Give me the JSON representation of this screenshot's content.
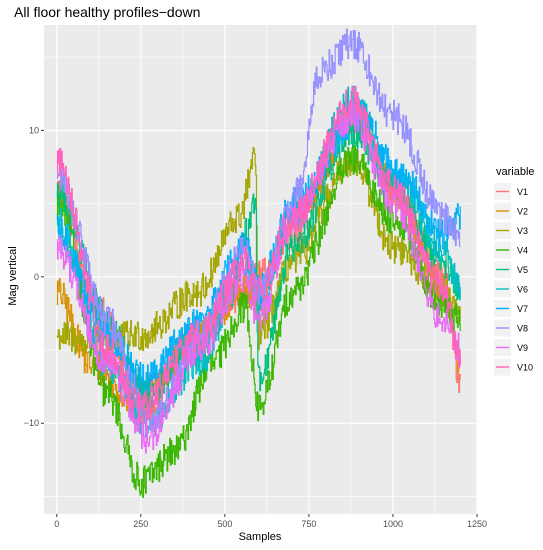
{
  "chart_data": {
    "type": "line",
    "title": "All floor healthy profiles−down",
    "xlabel": "Samples",
    "ylabel": "Mag vertical",
    "xlim": [
      -38,
      1250
    ],
    "ylim": [
      -16.2,
      17.2
    ],
    "x_ticks": [
      0,
      250,
      500,
      750,
      1000,
      1250
    ],
    "y_ticks": [
      -10,
      0,
      10
    ],
    "grid": true,
    "legend_title": "variable",
    "legend_position": "right",
    "n_samples": 1200,
    "series": [
      {
        "name": "V1",
        "color": "#F8766D",
        "keypoints": [
          [
            0,
            6
          ],
          [
            120,
            -2
          ],
          [
            250,
            -8
          ],
          [
            420,
            -4
          ],
          [
            560,
            -1
          ],
          [
            600,
            0
          ],
          [
            700,
            3
          ],
          [
            880,
            11
          ],
          [
            1000,
            6
          ],
          [
            1150,
            0
          ],
          [
            1200,
            -7
          ]
        ]
      },
      {
        "name": "V2",
        "color": "#D89000",
        "keypoints": [
          [
            0,
            -1
          ],
          [
            100,
            -6
          ],
          [
            250,
            -9
          ],
          [
            420,
            -4
          ],
          [
            560,
            -1
          ],
          [
            600,
            -2
          ],
          [
            700,
            4
          ],
          [
            900,
            11
          ],
          [
            1020,
            5
          ],
          [
            1150,
            -1
          ],
          [
            1200,
            -6
          ]
        ]
      },
      {
        "name": "V3",
        "color": "#A3A500",
        "keypoints": [
          [
            0,
            -4
          ],
          [
            100,
            -4.5
          ],
          [
            250,
            -4
          ],
          [
            420,
            -1
          ],
          [
            540,
            4
          ],
          [
            590,
            8
          ],
          [
            600,
            -4
          ],
          [
            700,
            1
          ],
          [
            880,
            8
          ],
          [
            1000,
            2
          ],
          [
            1150,
            -1
          ],
          [
            1200,
            -3
          ]
        ]
      },
      {
        "name": "V4",
        "color": "#39B600",
        "keypoints": [
          [
            0,
            5
          ],
          [
            150,
            -8
          ],
          [
            250,
            -14
          ],
          [
            350,
            -12
          ],
          [
            460,
            -6
          ],
          [
            560,
            -2
          ],
          [
            600,
            -9
          ],
          [
            700,
            -1
          ],
          [
            880,
            8
          ],
          [
            1000,
            4
          ],
          [
            1150,
            -2
          ],
          [
            1200,
            -3
          ]
        ]
      },
      {
        "name": "V5",
        "color": "#00BF7D",
        "keypoints": [
          [
            0,
            6
          ],
          [
            150,
            -3
          ],
          [
            260,
            -8
          ],
          [
            420,
            -5
          ],
          [
            520,
            -1
          ],
          [
            560,
            3
          ],
          [
            590,
            5
          ],
          [
            600,
            -7
          ],
          [
            700,
            2
          ],
          [
            880,
            10
          ],
          [
            1000,
            6
          ],
          [
            1150,
            1
          ],
          [
            1200,
            -1
          ]
        ]
      },
      {
        "name": "V6",
        "color": "#00BFC4",
        "keypoints": [
          [
            0,
            4
          ],
          [
            150,
            -6
          ],
          [
            270,
            -10
          ],
          [
            420,
            -6
          ],
          [
            560,
            1
          ],
          [
            600,
            -2
          ],
          [
            700,
            4
          ],
          [
            880,
            12
          ],
          [
            1000,
            7
          ],
          [
            1150,
            2
          ],
          [
            1200,
            -1
          ]
        ]
      },
      {
        "name": "V7",
        "color": "#00B0F6",
        "keypoints": [
          [
            0,
            3
          ],
          [
            150,
            -4
          ],
          [
            260,
            -7
          ],
          [
            420,
            -3
          ],
          [
            560,
            2
          ],
          [
            600,
            -1
          ],
          [
            700,
            5
          ],
          [
            900,
            11
          ],
          [
            1020,
            7
          ],
          [
            1150,
            3
          ],
          [
            1200,
            4
          ]
        ]
      },
      {
        "name": "V8",
        "color": "#9590FF",
        "keypoints": [
          [
            0,
            7
          ],
          [
            150,
            -3
          ],
          [
            280,
            -10
          ],
          [
            420,
            -4
          ],
          [
            560,
            2
          ],
          [
            600,
            -1
          ],
          [
            720,
            6
          ],
          [
            780,
            14
          ],
          [
            880,
            16
          ],
          [
            1000,
            11
          ],
          [
            1150,
            4
          ],
          [
            1200,
            3
          ]
        ]
      },
      {
        "name": "V9",
        "color": "#E76BF3",
        "keypoints": [
          [
            0,
            2
          ],
          [
            150,
            -6
          ],
          [
            270,
            -11
          ],
          [
            420,
            -5
          ],
          [
            560,
            0
          ],
          [
            600,
            -3
          ],
          [
            700,
            4
          ],
          [
            880,
            11
          ],
          [
            1000,
            5
          ],
          [
            1150,
            -3
          ],
          [
            1200,
            -5
          ]
        ]
      },
      {
        "name": "V10",
        "color": "#FF62BC",
        "keypoints": [
          [
            0,
            8
          ],
          [
            150,
            -5
          ],
          [
            250,
            -9
          ],
          [
            420,
            -4
          ],
          [
            560,
            1
          ],
          [
            600,
            -1
          ],
          [
            700,
            4
          ],
          [
            880,
            12
          ],
          [
            1000,
            6
          ],
          [
            1150,
            -1
          ],
          [
            1200,
            -6
          ]
        ]
      }
    ]
  }
}
